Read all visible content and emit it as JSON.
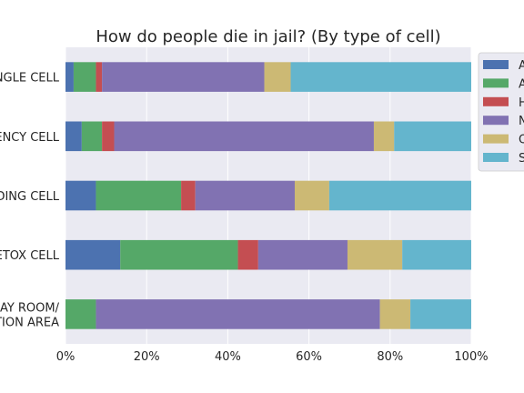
{
  "chart_data": {
    "type": "bar",
    "orientation": "horizontal",
    "stacked": true,
    "normalized": true,
    "title": "How do people die in jail? (By type of cell)",
    "xlabel": "",
    "ylabel": "",
    "xlim": [
      0,
      1
    ],
    "xticks": [
      "0%",
      "20%",
      "40%",
      "60%",
      "80%",
      "100%"
    ],
    "grid": true,
    "legend_position": "right",
    "categories": [
      [
        "SINGLE CELL"
      ],
      [
        "EMERGENCY CELL"
      ],
      [
        "HOLDING CELL"
      ],
      [
        "DETOX CELL"
      ],
      [
        "DAY ROOM/",
        "RECREATION AREA"
      ]
    ],
    "series": [
      {
        "name": "A",
        "color": "#4c72b0",
        "values": [
          0.02,
          0.04,
          0.075,
          0.135,
          0.0
        ]
      },
      {
        "name": "A",
        "color": "#55a868",
        "values": [
          0.055,
          0.05,
          0.21,
          0.29,
          0.075
        ]
      },
      {
        "name": "H",
        "color": "#c44e52",
        "values": [
          0.015,
          0.03,
          0.035,
          0.05,
          0.0
        ]
      },
      {
        "name": "N",
        "color": "#8172b2",
        "values": [
          0.4,
          0.64,
          0.245,
          0.22,
          0.7
        ]
      },
      {
        "name": "O",
        "color": "#ccb974",
        "values": [
          0.065,
          0.05,
          0.085,
          0.135,
          0.075
        ]
      },
      {
        "name": "S",
        "color": "#64b5cd",
        "values": [
          0.445,
          0.19,
          0.35,
          0.17,
          0.15
        ]
      }
    ]
  }
}
